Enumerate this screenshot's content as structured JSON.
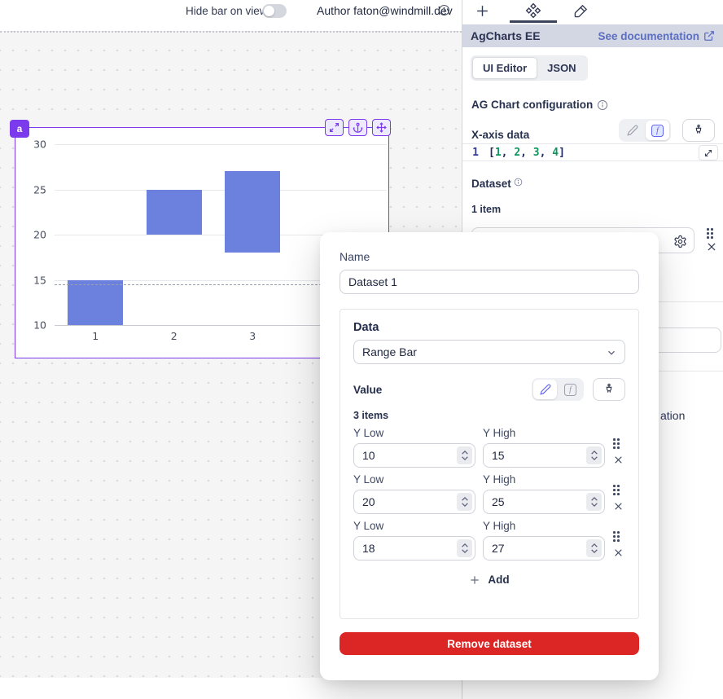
{
  "topbar": {
    "hide_toggle_label": "Hide bar on view",
    "author": "Author faton@windmill.dev"
  },
  "canvas": {
    "component_badge": "a"
  },
  "panel": {
    "header": {
      "title": "AgCharts EE",
      "doc_link": "See documentation"
    },
    "editor_tabs": {
      "ui": "UI Editor",
      "json": "JSON"
    },
    "config_title": "AG Chart configuration",
    "xaxis_label": "X-axis data",
    "code": {
      "line_no": "1",
      "tokens": [
        "[",
        "1",
        ", ",
        "2",
        ", ",
        "3",
        ", ",
        "4",
        "]"
      ]
    },
    "dataset_label": "Dataset",
    "dataset_count": "1 item",
    "bg_fragment_text": "ation"
  },
  "modal": {
    "name_label": "Name",
    "name_value": "Dataset 1",
    "data": {
      "title": "Data",
      "type_value": "Range Bar",
      "value_label": "Value",
      "items_label": "3 items",
      "rows": [
        {
          "low_label": "Y Low",
          "low_value": "10",
          "high_label": "Y High",
          "high_value": "15"
        },
        {
          "low_label": "Y Low",
          "low_value": "20",
          "high_label": "Y High",
          "high_value": "25"
        },
        {
          "low_label": "Y Low",
          "low_value": "18",
          "high_label": "Y High",
          "high_value": "27"
        }
      ],
      "add_label": "Add"
    },
    "remove_label": "Remove dataset"
  },
  "chart_data": {
    "type": "bar",
    "subtype": "vertical-range-bar",
    "x": [
      1,
      2,
      3,
      4
    ],
    "series": [
      {
        "name": "Dataset 1",
        "ranges": [
          [
            10,
            15
          ],
          [
            20,
            25
          ],
          [
            18,
            27
          ]
        ]
      }
    ],
    "ylim": [
      10,
      30
    ],
    "yticks": [
      10,
      15,
      20,
      25,
      30
    ],
    "guide_value": 14.5,
    "grid": true,
    "legend": "none",
    "bar_color": "#6c80dd"
  },
  "colors": {
    "accent": "#7c3aed",
    "danger": "#dc2626",
    "link": "#5c6fc0",
    "code_number": "#10945c",
    "panel_header_bg": "#d3d6e3"
  }
}
